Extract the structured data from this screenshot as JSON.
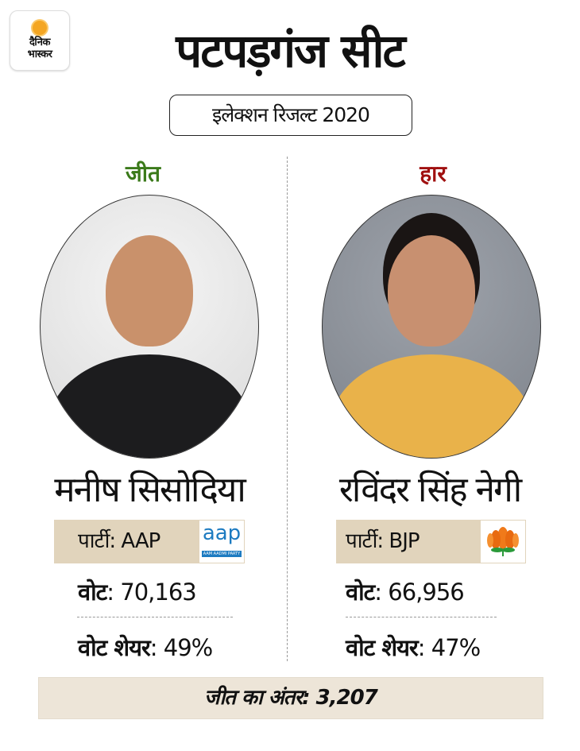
{
  "brand": {
    "logo_line1": "दैनिक",
    "logo_line2": "भास्कर",
    "sun_color": "#f4a623"
  },
  "title": "पटपड़गंज सीट",
  "subtitle": "इलेक्शन रिजल्ट 2020",
  "winner": {
    "status": "जीत",
    "status_color": "#3b7a1a",
    "name": "मनीष सिसोदिया",
    "party_label": "पार्टी: AAP",
    "party_logo_text": "aap",
    "party_logo_subtext": "AAM AADMI PARTY",
    "votes_label": "वोट",
    "votes_value": ": 70,163",
    "share_label": "वोट शेयर",
    "share_value": ": 49%"
  },
  "loser": {
    "status": "हार",
    "status_color": "#a01010",
    "name": "रविंदर सिंह नेगी",
    "party_label": "पार्टी: BJP",
    "party_logo_icon": "lotus-icon",
    "votes_label": "वोट",
    "votes_value": ": 66,956",
    "share_label": "वोट शेयर",
    "share_value": ": 47%"
  },
  "margin": "जीत का अंतर: 3,207"
}
